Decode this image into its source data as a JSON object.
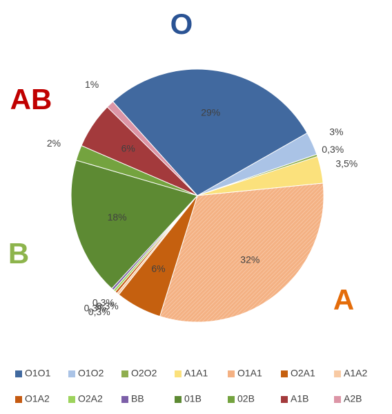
{
  "chart_data": {
    "type": "pie",
    "categories": [
      "O1O1",
      "O1O2",
      "O2O2",
      "A1A1",
      "O1A1",
      "O2A1",
      "A1A2",
      "O1A2",
      "O2A2",
      "BB",
      "01B",
      "02B",
      "A1B",
      "A2B"
    ],
    "values": [
      29,
      3,
      0.3,
      3.5,
      32,
      6,
      0.3,
      0.3,
      0.3,
      0.3,
      18,
      2,
      6,
      1
    ],
    "value_labels": [
      "29%",
      "3%",
      "0,3%",
      "3,5%",
      "32%",
      "6%",
      "0,3%",
      "0,3%",
      "0,3%",
      "0,3%",
      "18%",
      "2%",
      "6%",
      "1%"
    ],
    "colors": [
      "#41699f",
      "#aac3e6",
      "#8fae4f",
      "#fbe17c",
      "#f4b183",
      "#c5600f",
      "#f8caa4",
      "#c55a11",
      "#9dd35c",
      "#7c5fa8",
      "#5d8a33",
      "#74a33f",
      "#a33a3c",
      "#dc95a6"
    ],
    "annotations": [
      {
        "text": "O",
        "color": "#2a5394"
      },
      {
        "text": "AB",
        "color": "#c00000"
      },
      {
        "text": "B",
        "color": "#8db44c"
      },
      {
        "text": "A",
        "color": "#e46c0a"
      }
    ],
    "legend": "bottom"
  }
}
